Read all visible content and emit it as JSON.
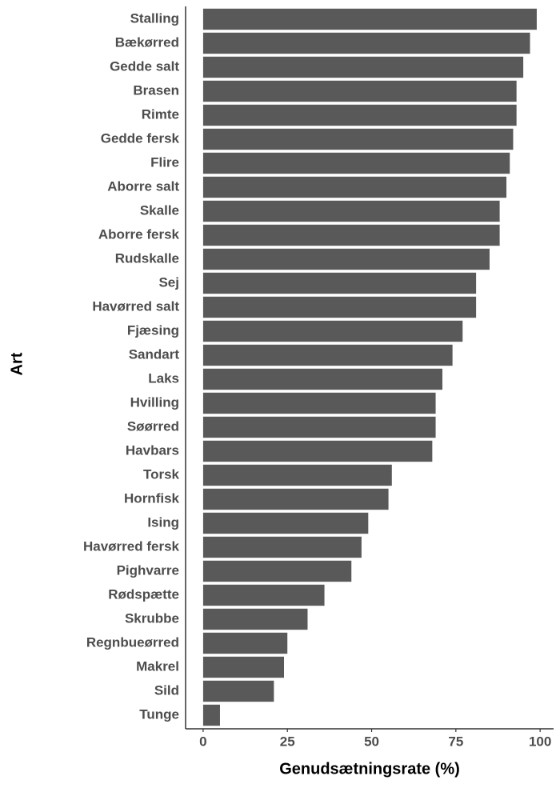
{
  "chart_data": {
    "type": "bar",
    "orientation": "horizontal",
    "x_label": "Genudsætningsrate (%)",
    "y_label": "Art",
    "categories": [
      "Stalling",
      "Bækørred",
      "Gedde salt",
      "Brasen",
      "Rimte",
      "Gedde fersk",
      "Flire",
      "Aborre salt",
      "Skalle",
      "Aborre fersk",
      "Rudskalle",
      "Sej",
      "Havørred salt",
      "Fjæsing",
      "Sandart",
      "Laks",
      "Hvilling",
      "Søørred",
      "Havbars",
      "Torsk",
      "Hornfisk",
      "Ising",
      "Havørred fersk",
      "Pighvarre",
      "Rødspætte",
      "Skrubbe",
      "Regnbueørred",
      "Makrel",
      "Sild",
      "Tunge"
    ],
    "values": [
      99,
      97,
      95,
      93,
      93,
      92,
      91,
      90,
      88,
      88,
      85,
      81,
      81,
      77,
      74,
      71,
      69,
      69,
      68,
      56,
      55,
      49,
      47,
      44,
      36,
      31,
      25,
      24,
      21,
      5
    ],
    "color": "#595959",
    "xlim": [
      -5.2,
      104
    ],
    "xticks": [
      0,
      25,
      50,
      75,
      100
    ],
    "grid": false
  }
}
